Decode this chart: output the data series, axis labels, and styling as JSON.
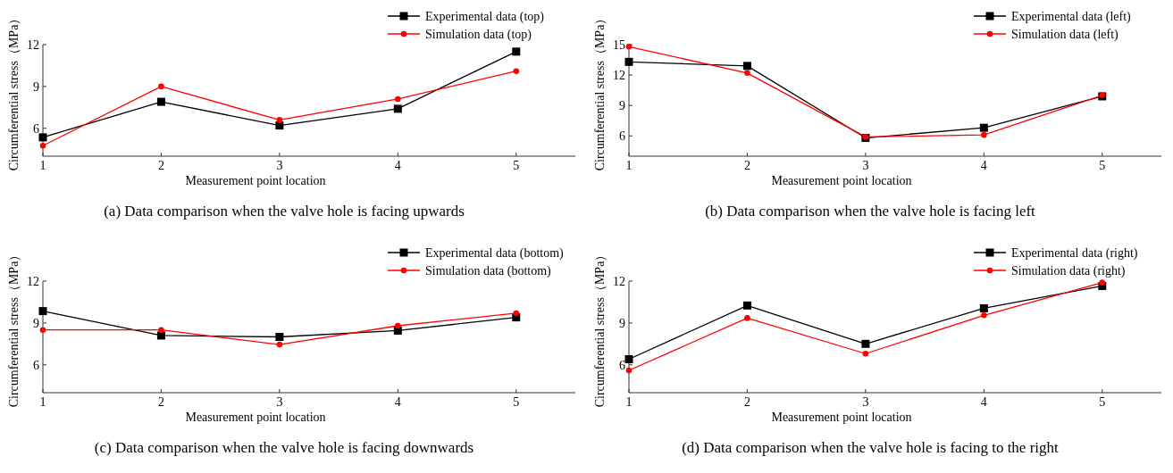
{
  "chart_data": [
    {
      "type": "line",
      "title": "(a)  Data comparison when the valve hole is facing upwards",
      "xlabel": "Measurement point location",
      "ylabel": "Circumferential stress（MPa）",
      "x": [
        1,
        2,
        3,
        4,
        5
      ],
      "xlim": [
        1,
        5.5
      ],
      "xticks": [
        1,
        2,
        3,
        4,
        5
      ],
      "ylim": [
        4,
        12
      ],
      "yticks": [
        6,
        9,
        12
      ],
      "grid": false,
      "legend": "top right",
      "series": [
        {
          "name": "Experimental data (top)",
          "color": "#000000",
          "marker": "square",
          "values": [
            5.35,
            7.9,
            6.2,
            7.4,
            11.5
          ]
        },
        {
          "name": "Simulation data (top)",
          "color": "#ff0000",
          "marker": "circle",
          "values": [
            4.75,
            9.0,
            6.6,
            8.1,
            10.1
          ]
        }
      ]
    },
    {
      "type": "line",
      "title": "(b)  Data comparison when the valve hole is facing left",
      "xlabel": "Measurement point location",
      "ylabel": "Circumferential stress（MPa）",
      "x": [
        1,
        2,
        3,
        4,
        5
      ],
      "xlim": [
        1,
        5.5
      ],
      "xticks": [
        1,
        2,
        3,
        4,
        5
      ],
      "ylim": [
        4,
        15
      ],
      "yticks": [
        6,
        9,
        12,
        15
      ],
      "grid": false,
      "legend": "top right",
      "series": [
        {
          "name": "Experimental data (left)",
          "color": "#000000",
          "marker": "square",
          "values": [
            13.3,
            12.9,
            5.8,
            6.8,
            9.9
          ]
        },
        {
          "name": "Simulation data (left)",
          "color": "#ff0000",
          "marker": "circle",
          "values": [
            14.8,
            12.2,
            5.9,
            6.1,
            10.0
          ]
        }
      ]
    },
    {
      "type": "line",
      "title": "(c)  Data comparison when the valve hole is facing downwards",
      "xlabel": "Measurement point location",
      "ylabel": "Circumferential stress（MPa）",
      "x": [
        1,
        2,
        3,
        4,
        5
      ],
      "xlim": [
        1,
        5.5
      ],
      "xticks": [
        1,
        2,
        3,
        4,
        5
      ],
      "ylim": [
        4,
        12
      ],
      "yticks": [
        6,
        9,
        12
      ],
      "grid": false,
      "legend": "top right",
      "series": [
        {
          "name": "Experimental data (bottom)",
          "color": "#000000",
          "marker": "square",
          "values": [
            9.85,
            8.1,
            8.0,
            8.45,
            9.4
          ]
        },
        {
          "name": "Simulation data (bottom)",
          "color": "#ff0000",
          "marker": "circle",
          "values": [
            8.5,
            8.5,
            7.45,
            8.8,
            9.7
          ]
        }
      ]
    },
    {
      "type": "line",
      "title": "(d)  Data comparison when the valve hole is facing to the right",
      "xlabel": "Measurement point location",
      "ylabel": "Circumferential stress（MPa）",
      "x": [
        1,
        2,
        3,
        4,
        5
      ],
      "xlim": [
        1,
        5.5
      ],
      "xticks": [
        1,
        2,
        3,
        4,
        5
      ],
      "ylim": [
        4,
        12
      ],
      "yticks": [
        6,
        9,
        12
      ],
      "grid": false,
      "legend": "top right",
      "series": [
        {
          "name": "Experimental data (right)",
          "color": "#000000",
          "marker": "square",
          "values": [
            6.4,
            10.25,
            7.5,
            10.05,
            11.65
          ]
        },
        {
          "name": "Simulation data (right)",
          "color": "#ff0000",
          "marker": "circle",
          "values": [
            5.6,
            9.35,
            6.8,
            9.55,
            11.9
          ]
        }
      ]
    }
  ]
}
